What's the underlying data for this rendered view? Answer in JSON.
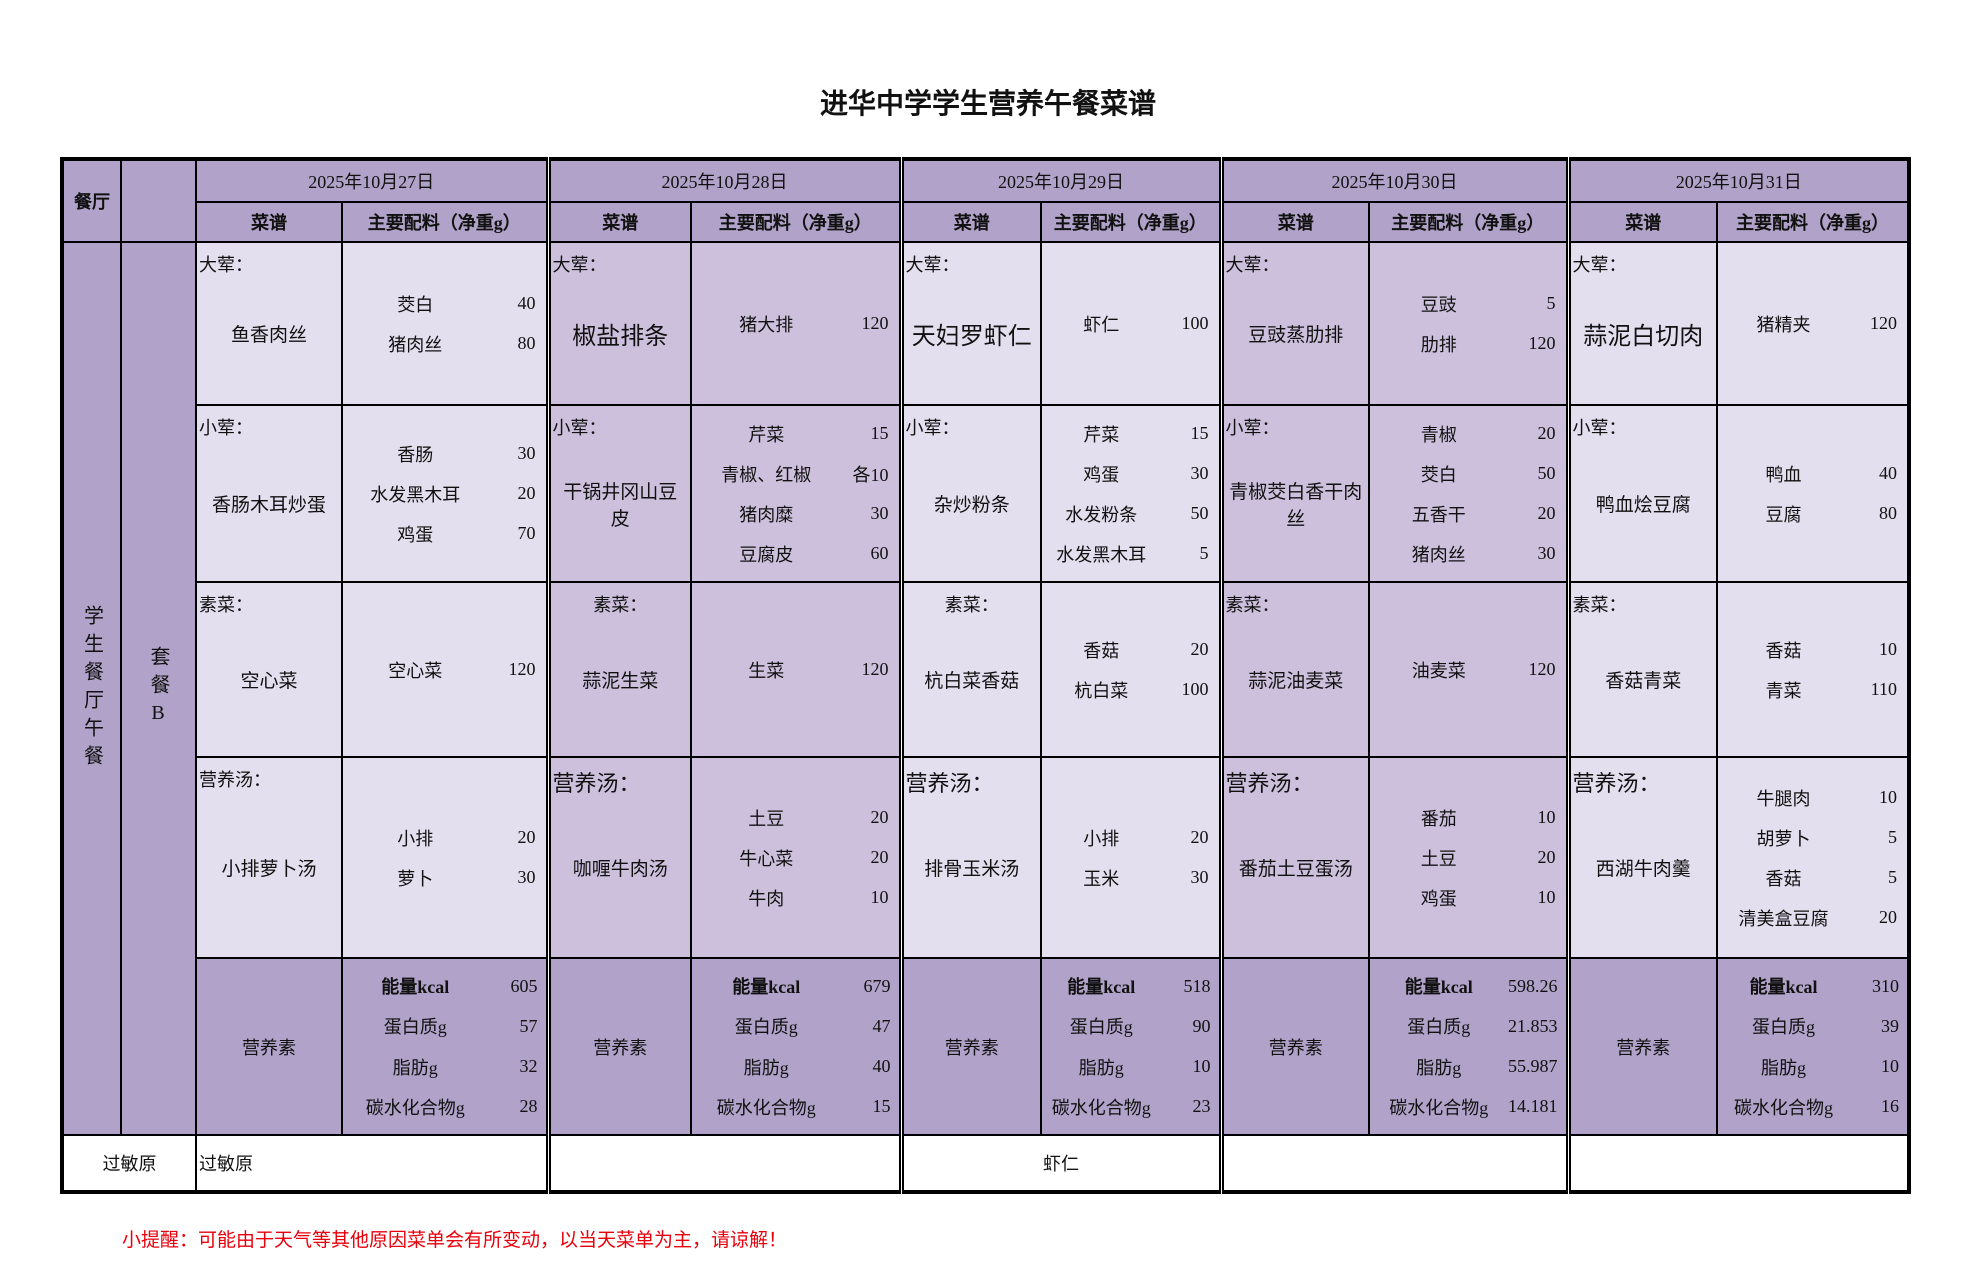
{
  "title": "进华中学学生营养午餐菜谱",
  "header": {
    "canteen_label": "餐厅",
    "dish_col": "菜谱",
    "ingredient_col": "主要配料（净重g）"
  },
  "sidebar": {
    "canteen_name": "学生餐厅午餐",
    "set_meal": "套餐B",
    "allergen_label": "过敏原"
  },
  "nutrition_label": "营养素",
  "colors": {
    "header": "#b0a2c8",
    "light": "#e3dfee",
    "medium": "#cdc0dc",
    "reminder": "#e8000b"
  },
  "days": [
    {
      "date": "2025年10月27日",
      "dishes": [
        {
          "category": "大荤：",
          "name": "鱼香肉丝",
          "ingredients": [
            {
              "name": "茭白",
              "amount": "40"
            },
            {
              "name": "猪肉丝",
              "amount": "80"
            }
          ]
        },
        {
          "category": "小荤：",
          "name": "香肠木耳炒蛋",
          "ingredients": [
            {
              "name": "香肠",
              "amount": "30"
            },
            {
              "name": "水发黑木耳",
              "amount": "20"
            },
            {
              "name": "鸡蛋",
              "amount": "70"
            }
          ]
        },
        {
          "category": "素菜：",
          "name": "空心菜",
          "ingredients": [
            {
              "name": "空心菜",
              "amount": "120"
            }
          ]
        },
        {
          "category": "营养汤：",
          "name": "小排萝卜汤",
          "ingredients": [
            {
              "name": "小排",
              "amount": "20"
            },
            {
              "name": "萝卜",
              "amount": "30"
            }
          ]
        }
      ],
      "nutrition": [
        {
          "label": "能量kcal",
          "value": "605"
        },
        {
          "label": "蛋白质g",
          "value": "57"
        },
        {
          "label": "脂肪g",
          "value": "32"
        },
        {
          "label": "碳水化合物g",
          "value": "28"
        }
      ],
      "allergen": "过敏原"
    },
    {
      "date": "2025年10月28日",
      "dishes": [
        {
          "category": "大荤：",
          "name": "椒盐排条",
          "ingredients": [
            {
              "name": "猪大排",
              "amount": "120"
            }
          ]
        },
        {
          "category": "小荤：",
          "name": "干锅井冈山豆皮",
          "ingredients": [
            {
              "name": "芹菜",
              "amount": "15"
            },
            {
              "name": "青椒、红椒",
              "amount": "各10"
            },
            {
              "name": "猪肉糜",
              "amount": "30"
            },
            {
              "name": "豆腐皮",
              "amount": "60"
            }
          ]
        },
        {
          "category": "素菜：",
          "name": "蒜泥生菜",
          "ingredients": [
            {
              "name": "生菜",
              "amount": "120"
            }
          ]
        },
        {
          "category": "营养汤：",
          "name": "咖喱牛肉汤",
          "ingredients": [
            {
              "name": "土豆",
              "amount": "20"
            },
            {
              "name": "牛心菜",
              "amount": "20"
            },
            {
              "name": "牛肉",
              "amount": "10"
            }
          ]
        }
      ],
      "nutrition": [
        {
          "label": "能量kcal",
          "value": "679"
        },
        {
          "label": "蛋白质g",
          "value": "47"
        },
        {
          "label": "脂肪g",
          "value": "40"
        },
        {
          "label": "碳水化合物g",
          "value": "15"
        }
      ],
      "allergen": ""
    },
    {
      "date": "2025年10月29日",
      "dishes": [
        {
          "category": "大荤：",
          "name": "天妇罗虾仁",
          "ingredients": [
            {
              "name": "虾仁",
              "amount": "100"
            }
          ]
        },
        {
          "category": "小荤：",
          "name": "杂炒粉条",
          "ingredients": [
            {
              "name": "芹菜",
              "amount": "15"
            },
            {
              "name": "鸡蛋",
              "amount": "30"
            },
            {
              "name": "水发粉条",
              "amount": "50"
            },
            {
              "name": "水发黑木耳",
              "amount": "5"
            }
          ]
        },
        {
          "category": "素菜：",
          "name": "杭白菜香菇",
          "ingredients": [
            {
              "name": "香菇",
              "amount": "20"
            },
            {
              "name": "杭白菜",
              "amount": "100"
            }
          ]
        },
        {
          "category": "营养汤：",
          "name": "排骨玉米汤",
          "ingredients": [
            {
              "name": "小排",
              "amount": "20"
            },
            {
              "name": "玉米",
              "amount": "30"
            }
          ]
        }
      ],
      "nutrition": [
        {
          "label": "能量kcal",
          "value": "518"
        },
        {
          "label": "蛋白质g",
          "value": "90"
        },
        {
          "label": "脂肪g",
          "value": "10"
        },
        {
          "label": "碳水化合物g",
          "value": "23"
        }
      ],
      "allergen": "虾仁"
    },
    {
      "date": "2025年10月30日",
      "dishes": [
        {
          "category": "大荤：",
          "name": "豆豉蒸肋排",
          "ingredients": [
            {
              "name": "豆豉",
              "amount": "5"
            },
            {
              "name": "肋排",
              "amount": "120"
            }
          ]
        },
        {
          "category": "小荤：",
          "name": "青椒茭白香干肉丝",
          "ingredients": [
            {
              "name": "青椒",
              "amount": "20"
            },
            {
              "name": "茭白",
              "amount": "50"
            },
            {
              "name": "五香干",
              "amount": "20"
            },
            {
              "name": "猪肉丝",
              "amount": "30"
            }
          ]
        },
        {
          "category": "素菜：",
          "name": "蒜泥油麦菜",
          "ingredients": [
            {
              "name": "油麦菜",
              "amount": "120"
            }
          ]
        },
        {
          "category": "营养汤：",
          "name": "番茄土豆蛋汤",
          "ingredients": [
            {
              "name": "番茄",
              "amount": "10"
            },
            {
              "name": "土豆",
              "amount": "20"
            },
            {
              "name": "鸡蛋",
              "amount": "10"
            }
          ]
        }
      ],
      "nutrition": [
        {
          "label": "能量kcal",
          "value": "598.26"
        },
        {
          "label": "蛋白质g",
          "value": "21.853"
        },
        {
          "label": "脂肪g",
          "value": "55.987"
        },
        {
          "label": "碳水化合物g",
          "value": "14.181"
        }
      ],
      "allergen": ""
    },
    {
      "date": "2025年10月31日",
      "dishes": [
        {
          "category": "大荤：",
          "name": "蒜泥白切肉",
          "ingredients": [
            {
              "name": "猪精夹",
              "amount": "120"
            }
          ]
        },
        {
          "category": "小荤：",
          "name": "鸭血烩豆腐",
          "ingredients": [
            {
              "name": "鸭血",
              "amount": "40"
            },
            {
              "name": "豆腐",
              "amount": "80"
            }
          ]
        },
        {
          "category": "素菜：",
          "name": "香菇青菜",
          "ingredients": [
            {
              "name": "香菇",
              "amount": "10"
            },
            {
              "name": "青菜",
              "amount": "110"
            }
          ]
        },
        {
          "category": "营养汤：",
          "name": "西湖牛肉羹",
          "ingredients": [
            {
              "name": "牛腿肉",
              "amount": "10"
            },
            {
              "name": "胡萝卜",
              "amount": "5"
            },
            {
              "name": "香菇",
              "amount": "5"
            },
            {
              "name": "清美盒豆腐",
              "amount": "20"
            }
          ]
        }
      ],
      "nutrition": [
        {
          "label": "能量kcal",
          "value": "310"
        },
        {
          "label": "蛋白质g",
          "value": "39"
        },
        {
          "label": "脂肪g",
          "value": "10"
        },
        {
          "label": "碳水化合物g",
          "value": "16"
        }
      ],
      "allergen": ""
    }
  ],
  "reminder": "小提醒：可能由于天气等其他原因菜单会有所变动，以当天菜单为主，请谅解！"
}
